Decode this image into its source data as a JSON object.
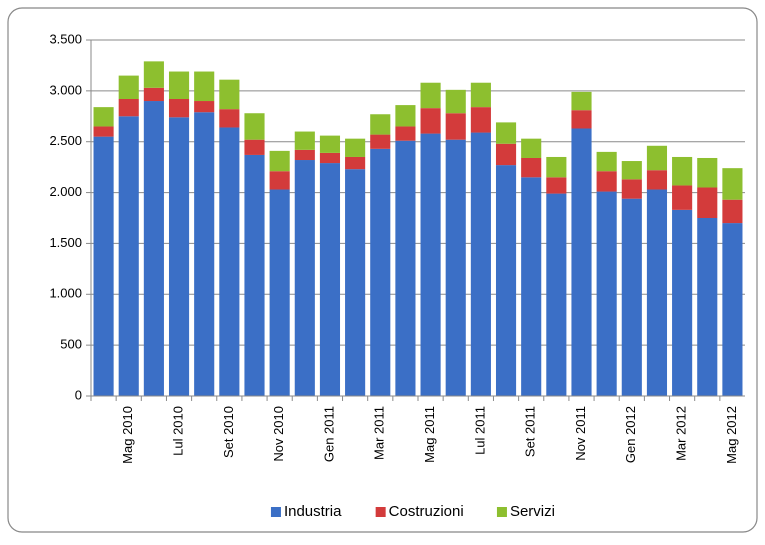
{
  "chart_data": {
    "type": "stacked_bar",
    "categories": [
      null,
      "Mag 2010",
      null,
      "Lul 2010",
      null,
      "Set 2010",
      null,
      "Nov 2010",
      null,
      "Gen 2011",
      null,
      "Mar 2011",
      null,
      "Mag 2011",
      null,
      "Lul 2011",
      null,
      "Set 2011",
      null,
      "Nov 2011",
      null,
      "Gen 2012",
      null,
      "Mar 2012",
      null,
      "Mag 2012"
    ],
    "series": [
      {
        "name": "Industria",
        "color": "#3b6fc6",
        "values": [
          2550,
          2750,
          2900,
          2740,
          2790,
          2640,
          2370,
          2030,
          2320,
          2290,
          2230,
          2430,
          2510,
          2580,
          2520,
          2590,
          2270,
          2150,
          1990,
          2630,
          2010,
          1940,
          2030,
          1830,
          1750,
          1700
        ]
      },
      {
        "name": "Costruzioni",
        "color": "#d33b3b",
        "values": [
          100,
          170,
          130,
          180,
          110,
          180,
          150,
          180,
          100,
          100,
          120,
          140,
          140,
          250,
          260,
          250,
          210,
          190,
          160,
          180,
          200,
          190,
          190,
          240,
          300,
          230
        ]
      },
      {
        "name": "Servizi",
        "color": "#8dbf2f",
        "values": [
          190,
          230,
          260,
          270,
          290,
          290,
          260,
          200,
          180,
          170,
          180,
          200,
          210,
          250,
          230,
          240,
          210,
          190,
          200,
          180,
          190,
          180,
          240,
          280,
          290,
          310
        ]
      }
    ],
    "ylim": [
      0,
      3500
    ],
    "yticks": [
      0,
      500,
      {
        "value": 1000,
        "label": "1.000"
      },
      {
        "value": 1500,
        "label": "1.500"
      },
      {
        "value": 2000,
        "label": "2.000"
      },
      {
        "value": 2500,
        "label": "2.500"
      },
      {
        "value": 3000,
        "label": "3.000"
      },
      {
        "value": 3500,
        "label": "3.500"
      }
    ],
    "grid": true,
    "legend": "bottom"
  }
}
